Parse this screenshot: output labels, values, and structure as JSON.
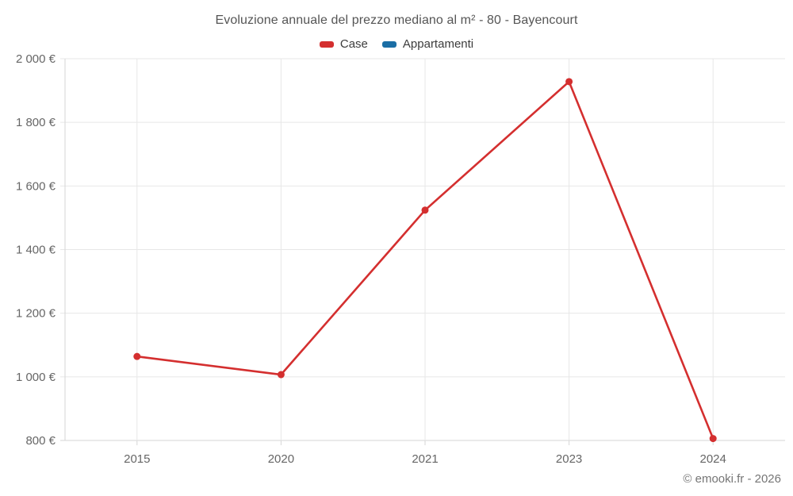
{
  "title": "Evoluzione annuale del prezzo mediano al m² - 80 - Bayencourt",
  "footer": "© emooki.fr - 2026",
  "colors": {
    "case_red": "#d42f2f",
    "appartamenti_blue": "#1b6ea5",
    "gridline": "#e7e7e7",
    "axis_line": "#d6d6d6",
    "tick_label": "#666666",
    "title_text": "#555555",
    "footer_text": "#757575"
  },
  "chart_data": {
    "type": "line",
    "title": "Evoluzione annuale del prezzo mediano al m² - 80 - Bayencourt",
    "categories": [
      "2015",
      "2020",
      "2021",
      "2023",
      "2024"
    ],
    "series": [
      {
        "name": "Case",
        "color": "#d42f2f",
        "values": [
          1064,
          1007,
          1524,
          1928,
          806
        ]
      },
      {
        "name": "Appartamenti",
        "color": "#1b6ea5",
        "values": []
      }
    ],
    "xlabel": "",
    "ylabel": "",
    "ylim": [
      800,
      2000
    ],
    "yticks": {
      "values": [
        800,
        1000,
        1200,
        1400,
        1600,
        1800,
        2000
      ],
      "labels": [
        "800 €",
        "1 000 €",
        "1 200 €",
        "1 400 €",
        "1 600 €",
        "1 800 €",
        "2 000 €"
      ]
    },
    "grid": true,
    "legend_position": "top"
  }
}
